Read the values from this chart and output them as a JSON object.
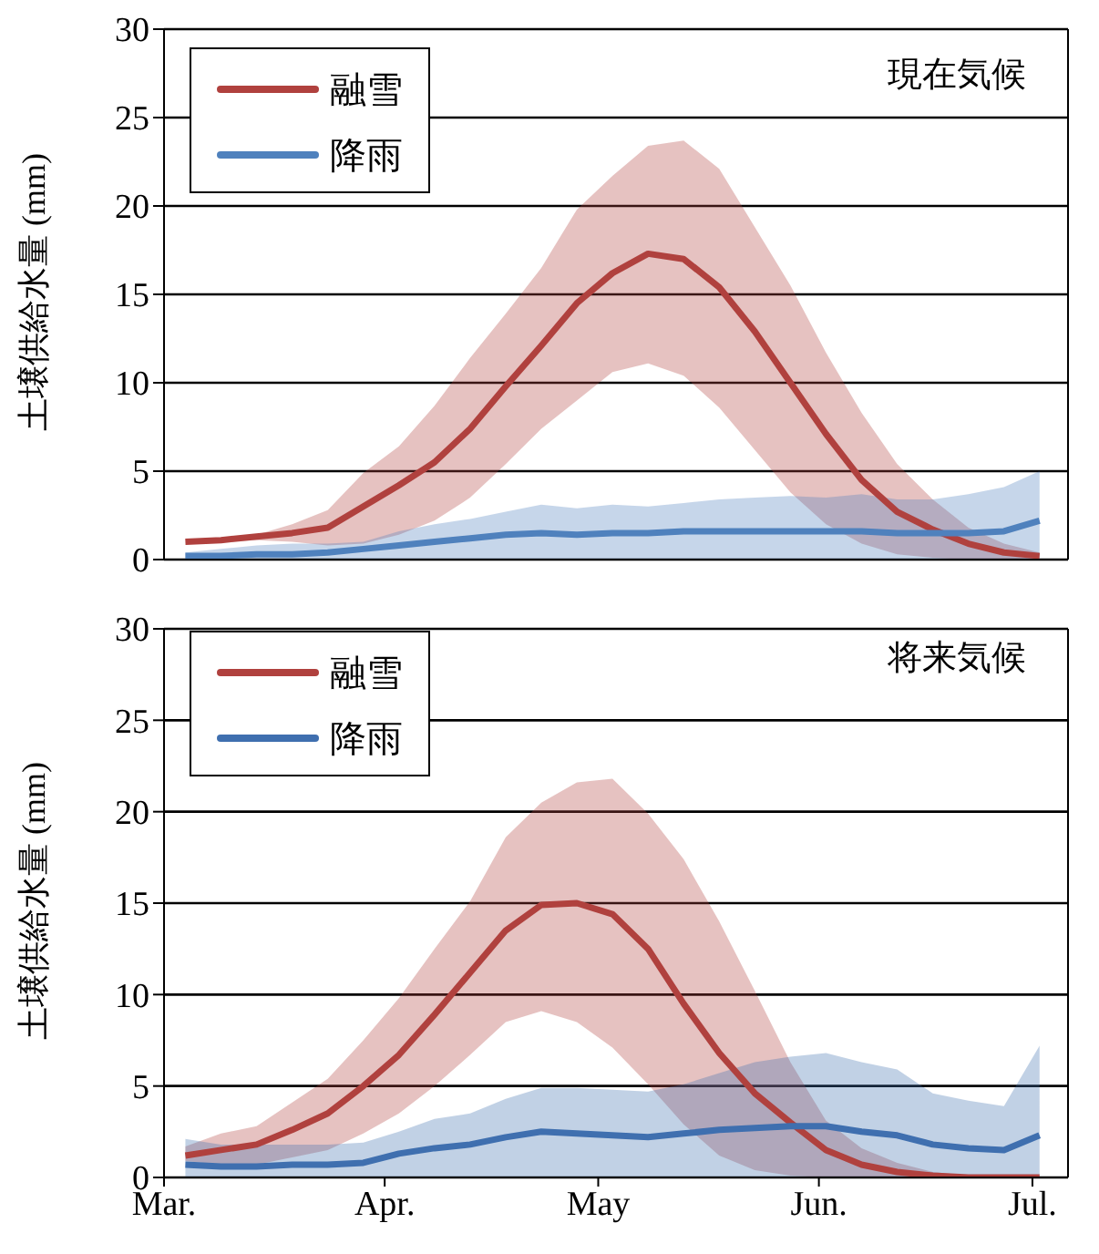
{
  "chart_data": [
    {
      "type": "line",
      "annotations": [
        "現在気候"
      ],
      "ylabel": "土壌供給水量 (mm)",
      "x": [
        "--03-04",
        "--03-09",
        "--03-14",
        "--03-19",
        "--03-24",
        "--03-29",
        "--04-03",
        "--04-08",
        "--04-13",
        "--04-18",
        "--04-23",
        "--04-28",
        "--05-03",
        "--05-08",
        "--05-13",
        "--05-18",
        "--05-23",
        "--05-28",
        "--06-02",
        "--06-07",
        "--06-12",
        "--06-17",
        "--06-22",
        "--06-27",
        "--07-02"
      ],
      "xlim": [
        "--03-01",
        "--07-06"
      ],
      "ylim": [
        0,
        30
      ],
      "yticks": [
        0,
        5,
        10,
        15,
        20,
        25,
        30
      ],
      "grid": "y",
      "legend": "top left",
      "tick_labels": "y",
      "marker": "none",
      "line_style": "solid",
      "series": [
        {
          "name": "融雪",
          "color": "#b0413e",
          "values": [
            1.0,
            1.1,
            1.3,
            1.5,
            1.8,
            3.0,
            4.2,
            5.5,
            7.4,
            9.8,
            12.1,
            14.5,
            16.2,
            17.3,
            17.0,
            15.4,
            12.9,
            10.0,
            7.1,
            4.5,
            2.7,
            1.7,
            0.9,
            0.4,
            0.2
          ],
          "lower": [
            1.0,
            1.0,
            1.1,
            1.0,
            0.8,
            0.9,
            1.4,
            2.2,
            3.5,
            5.4,
            7.4,
            9.0,
            10.6,
            11.1,
            10.4,
            8.6,
            6.2,
            3.8,
            2.0,
            0.9,
            0.3,
            0.1,
            0,
            0,
            0
          ],
          "upper": [
            1.0,
            1.1,
            1.4,
            2.0,
            2.8,
            4.9,
            6.4,
            8.7,
            11.4,
            13.9,
            16.5,
            19.8,
            21.7,
            23.4,
            23.7,
            22.1,
            18.8,
            15.5,
            11.7,
            8.3,
            5.4,
            3.4,
            1.8,
            0.9,
            0.4
          ]
        },
        {
          "name": "降雨",
          "color": "#4f81bd",
          "values": [
            0.2,
            0.2,
            0.3,
            0.3,
            0.4,
            0.6,
            0.8,
            1.0,
            1.2,
            1.4,
            1.5,
            1.4,
            1.5,
            1.5,
            1.6,
            1.6,
            1.6,
            1.6,
            1.6,
            1.6,
            1.5,
            1.5,
            1.5,
            1.6,
            2.2
          ],
          "lower": [
            0,
            0,
            0,
            0,
            0,
            0,
            0,
            0,
            0,
            0,
            0,
            0,
            0,
            0,
            0,
            0,
            0,
            0,
            0,
            0,
            0,
            0,
            0,
            0,
            0
          ],
          "upper": [
            0.4,
            0.6,
            0.8,
            0.9,
            0.9,
            1.0,
            1.6,
            2.0,
            2.3,
            2.7,
            3.1,
            2.9,
            3.1,
            3.0,
            3.2,
            3.4,
            3.5,
            3.6,
            3.5,
            3.7,
            3.4,
            3.4,
            3.7,
            4.1,
            5.0
          ]
        }
      ]
    },
    {
      "type": "line",
      "annotations": [
        "将来気候"
      ],
      "ylabel": "土壌供給水量 (mm)",
      "x": [
        "--03-04",
        "--03-09",
        "--03-14",
        "--03-19",
        "--03-24",
        "--03-29",
        "--04-03",
        "--04-08",
        "--04-13",
        "--04-18",
        "--04-23",
        "--04-28",
        "--05-03",
        "--05-08",
        "--05-13",
        "--05-18",
        "--05-23",
        "--05-28",
        "--06-02",
        "--06-07",
        "--06-12",
        "--06-17",
        "--06-22",
        "--06-27",
        "--07-02"
      ],
      "xlim": [
        "--03-01",
        "--07-06"
      ],
      "xticks": [
        {
          "value": "--03-01",
          "label": "Mar."
        },
        {
          "value": "--04-01",
          "label": "Apr."
        },
        {
          "value": "--05-01",
          "label": "May"
        },
        {
          "value": "--06-01",
          "label": "Jun."
        },
        {
          "value": "--07-01",
          "label": "Jul."
        }
      ],
      "ylim": [
        0,
        30
      ],
      "yticks": [
        0,
        5,
        10,
        15,
        20,
        25,
        30
      ],
      "grid": "y",
      "legend": "top left",
      "marker": "none",
      "line_style": "solid",
      "series": [
        {
          "name": "融雪",
          "color": "#b0413e",
          "values": [
            1.2,
            1.5,
            1.8,
            2.6,
            3.5,
            5.0,
            6.7,
            8.9,
            11.2,
            13.5,
            14.9,
            15.0,
            14.4,
            12.5,
            9.5,
            6.8,
            4.6,
            3.0,
            1.5,
            0.7,
            0.3,
            0.1,
            0,
            0,
            0
          ],
          "lower": [
            0.9,
            0.7,
            0.7,
            1.1,
            1.5,
            2.4,
            3.5,
            5.0,
            6.7,
            8.5,
            9.1,
            8.5,
            7.1,
            5.1,
            2.9,
            1.2,
            0.4,
            0.1,
            0,
            0,
            0,
            0,
            0,
            0,
            0
          ],
          "upper": [
            1.7,
            2.4,
            2.8,
            4.1,
            5.4,
            7.5,
            9.8,
            12.5,
            15.1,
            18.6,
            20.5,
            21.6,
            21.8,
            19.9,
            17.4,
            14.0,
            10.2,
            6.3,
            3.1,
            1.6,
            0.8,
            0.3,
            0.1,
            0,
            0
          ]
        },
        {
          "name": "降雨",
          "color": "#3f6faf",
          "values": [
            0.7,
            0.6,
            0.6,
            0.7,
            0.7,
            0.8,
            1.3,
            1.6,
            1.8,
            2.2,
            2.5,
            2.4,
            2.3,
            2.2,
            2.4,
            2.6,
            2.7,
            2.8,
            2.8,
            2.5,
            2.3,
            1.8,
            1.6,
            1.5,
            2.3
          ],
          "lower": [
            0,
            0,
            0,
            0,
            0,
            0,
            0,
            0,
            0,
            0,
            0,
            0,
            0,
            0,
            0,
            0,
            0,
            0,
            0,
            0,
            0,
            0,
            0,
            0,
            0
          ],
          "upper": [
            2.1,
            1.8,
            1.8,
            1.8,
            1.8,
            1.9,
            2.5,
            3.2,
            3.5,
            4.3,
            4.9,
            4.9,
            4.8,
            4.7,
            5.1,
            5.7,
            6.3,
            6.6,
            6.8,
            6.3,
            5.9,
            4.6,
            4.2,
            3.9,
            7.2
          ]
        }
      ]
    }
  ]
}
